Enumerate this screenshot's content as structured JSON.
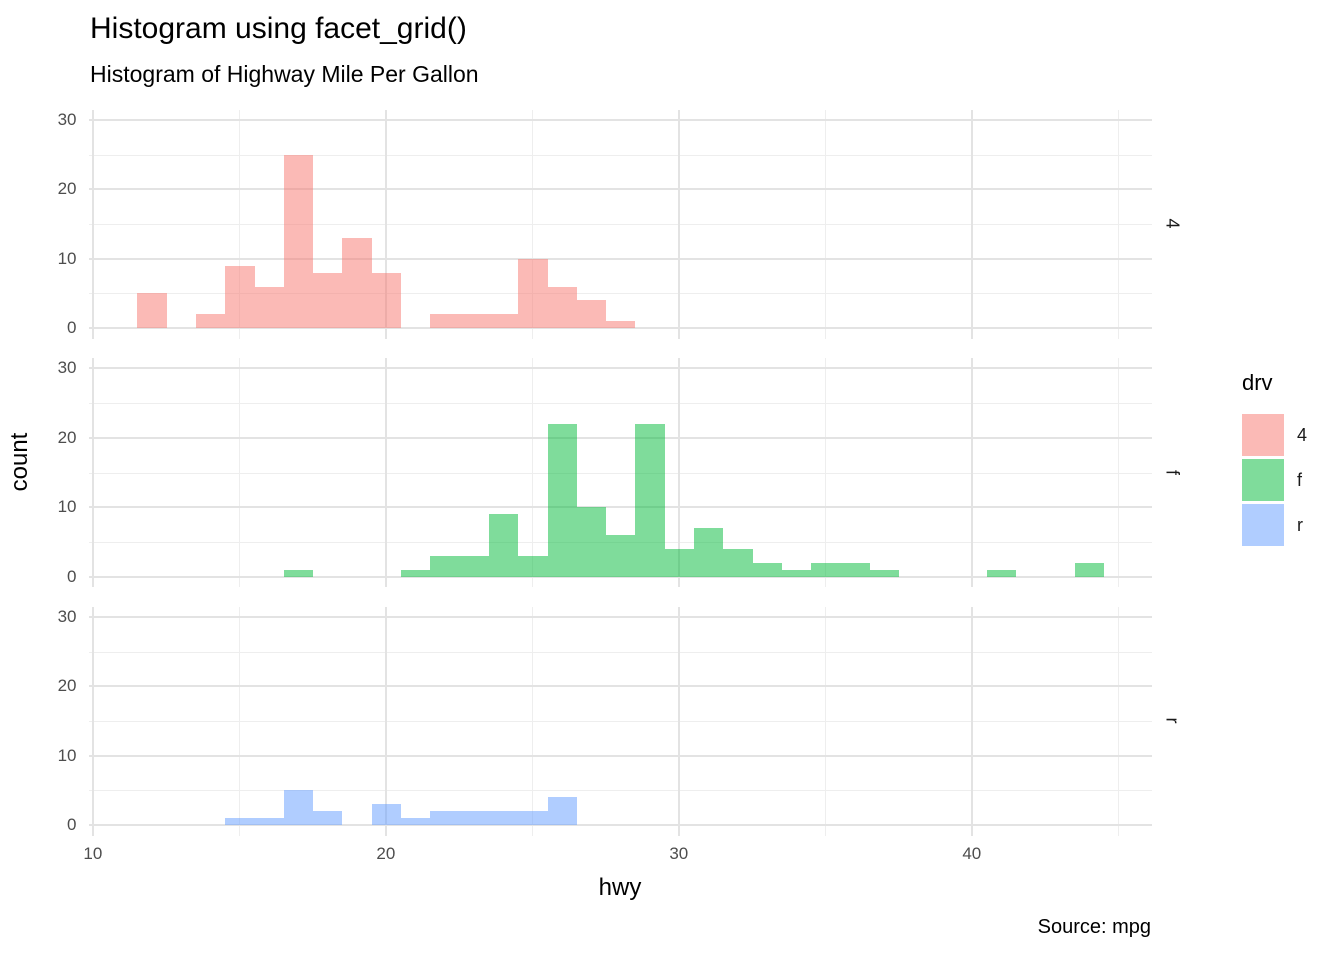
{
  "header": {
    "title": "Histogram using facet_grid()",
    "subtitle": "Histogram of Highway Mile Per Gallon"
  },
  "caption": "Source: mpg",
  "axes": {
    "x_title": "hwy",
    "y_title": "count"
  },
  "legend": {
    "title": "drv",
    "items": [
      {
        "label": "4",
        "color": "#F8766D"
      },
      {
        "label": "f",
        "color": "#00BA38"
      },
      {
        "label": "r",
        "color": "#619CFF"
      }
    ]
  },
  "style": {
    "fill_alpha": 0.5,
    "grid_major_color": "#E3E3E3",
    "grid_minor_color": "#EEEEEE",
    "tick_text_color": "#4D4D4D"
  },
  "chart_data": {
    "type": "bar",
    "subtype": "faceted-histogram",
    "title": "Histogram using facet_grid()",
    "subtitle": "Histogram of Highway Mile Per Gallon",
    "caption": "Source: mpg",
    "xlabel": "hwy",
    "ylabel": "count",
    "facet_variable": "drv",
    "binwidth": 1,
    "x_ticks": [
      10,
      20,
      30,
      40
    ],
    "x_minor_ticks": [
      15,
      25,
      35,
      45
    ],
    "y_ticks": [
      0,
      10,
      20,
      30
    ],
    "y_minor_ticks": [
      5,
      15,
      25
    ],
    "x_range": [
      9.85,
      46.15
    ],
    "y_range": [
      -1.5,
      31.5
    ],
    "legend_position": "right",
    "grid": true,
    "facets": [
      {
        "label": "4",
        "color": "#F8766D",
        "bins": [
          [
            12,
            5
          ],
          [
            14,
            2
          ],
          [
            15,
            9
          ],
          [
            16,
            6
          ],
          [
            17,
            25
          ],
          [
            18,
            8
          ],
          [
            19,
            13
          ],
          [
            20,
            8
          ],
          [
            22,
            2
          ],
          [
            23,
            2
          ],
          [
            24,
            2
          ],
          [
            25,
            10
          ],
          [
            26,
            6
          ],
          [
            27,
            4
          ],
          [
            28,
            1
          ]
        ]
      },
      {
        "label": "f",
        "color": "#00BA38",
        "bins": [
          [
            17,
            1
          ],
          [
            21,
            1
          ],
          [
            22,
            3
          ],
          [
            23,
            3
          ],
          [
            24,
            9
          ],
          [
            25,
            3
          ],
          [
            26,
            22
          ],
          [
            27,
            10
          ],
          [
            28,
            6
          ],
          [
            29,
            22
          ],
          [
            30,
            4
          ],
          [
            31,
            7
          ],
          [
            32,
            4
          ],
          [
            33,
            2
          ],
          [
            34,
            1
          ],
          [
            35,
            2
          ],
          [
            36,
            2
          ],
          [
            37,
            1
          ],
          [
            41,
            1
          ],
          [
            44,
            2
          ]
        ]
      },
      {
        "label": "r",
        "color": "#619CFF",
        "bins": [
          [
            15,
            1
          ],
          [
            16,
            1
          ],
          [
            17,
            5
          ],
          [
            18,
            2
          ],
          [
            20,
            3
          ],
          [
            21,
            1
          ],
          [
            22,
            2
          ],
          [
            23,
            2
          ],
          [
            24,
            2
          ],
          [
            25,
            2
          ],
          [
            26,
            4
          ]
        ]
      }
    ]
  }
}
